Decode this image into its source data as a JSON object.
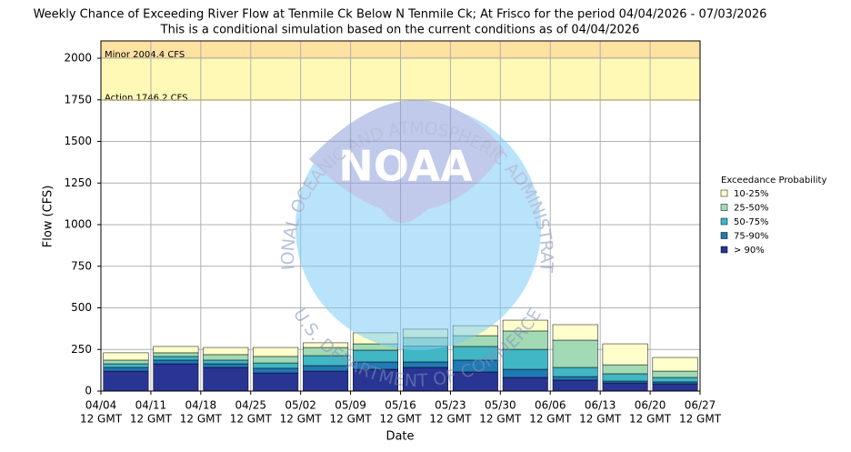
{
  "chart_data": {
    "type": "bar",
    "stacked": true,
    "title": "Weekly Chance of Exceeding River Flow at Tenmile Ck Below N Tenmile Ck; At Frisco for the period 04/04/2026 - 07/03/2026",
    "subtitle": "This is a conditional simulation based on the current conditions as of 04/04/2026",
    "x_label": "Date",
    "y_label": "Flow (CFS)",
    "x_edges": [
      "04/04",
      "04/11",
      "04/18",
      "04/25",
      "05/02",
      "05/09",
      "05/16",
      "05/23",
      "05/30",
      "06/06",
      "06/13",
      "06/20",
      "06/27"
    ],
    "x_edge_sublabel": "12 GMT",
    "ylim": [
      0,
      2104
    ],
    "yticks": [
      0,
      250,
      500,
      750,
      1000,
      1250,
      1500,
      1750,
      2000
    ],
    "grid": true,
    "legend_title": "Exceedance Probability",
    "legend_position": "right",
    "series": [
      {
        "name": "> 90%",
        "color": "#283593",
        "values": [
          120,
          164,
          142,
          109,
          120,
          131,
          142,
          115,
          82,
          66,
          49,
          44
        ]
      },
      {
        "name": "75-90%",
        "color": "#2179b5",
        "values": [
          22,
          22,
          22,
          28,
          33,
          44,
          33,
          71,
          49,
          21,
          11,
          11
        ]
      },
      {
        "name": "50-75%",
        "color": "#41b6c4",
        "values": [
          22,
          22,
          22,
          32,
          60,
          71,
          95,
          82,
          120,
          55,
          44,
          27
        ]
      },
      {
        "name": "25-50%",
        "color": "#a1dab4",
        "values": [
          22,
          22,
          33,
          39,
          49,
          38,
          52,
          65,
          110,
          164,
          54,
          38
        ]
      },
      {
        "name": "10-25%",
        "color": "#ffffcc",
        "values": [
          44,
          38,
          43,
          54,
          28,
          66,
          50,
          60,
          65,
          93,
          126,
          82
        ]
      }
    ],
    "thresholds": [
      {
        "label": "Action 1746.2 CFS",
        "value": 1746.2,
        "color": "#fff9b5"
      },
      {
        "label": "Minor 2004.4 CFS",
        "value": 2004.4,
        "color": "#ffe1a2"
      }
    ],
    "watermark": {
      "logo": "NOAA",
      "ring_top": "NATIONAL OCEANIC AND ATMOSPHERIC ADMINISTRATION",
      "ring_bottom": "U.S. DEPARTMENT OF COMMERCE"
    }
  }
}
